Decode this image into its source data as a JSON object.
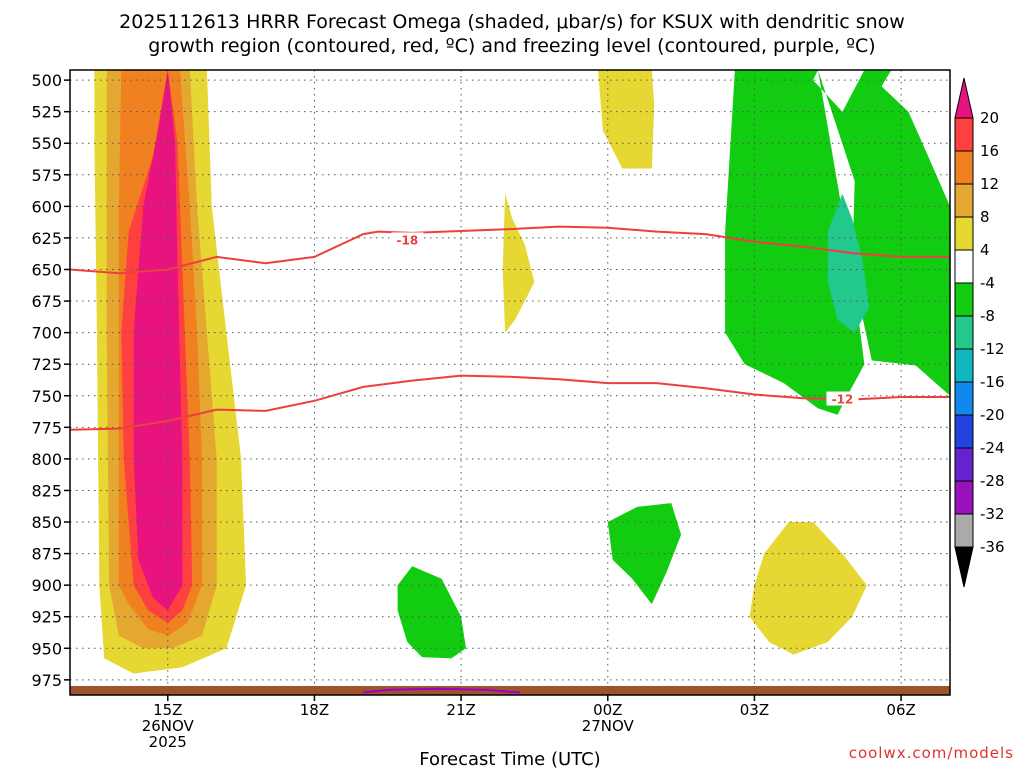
{
  "title": {
    "line1": "2025112613 HRRR Forecast Omega (shaded, μbar/s) for KSUX with dendritic snow",
    "line2": "growth region (contoured, red, ºC) and freezing level (contoured, purple, ºC)"
  },
  "credit": "coolwx.com/models",
  "colors": {
    "dgz_contour": "#ee3f3f",
    "freezing_contour": "#9900cc",
    "ground": "#a0522d",
    "grid": "#555555",
    "credit": "#dd3333"
  },
  "chart_data": {
    "type": "contour_time_height",
    "title": "2025112613 HRRR Forecast Omega (shaded, μbar/s) for KSUX with dendritic snow growth region (contoured, red, ºC) and freezing level (contoured, purple, ºC)",
    "xlabel": "Forecast Time (UTC)",
    "ylabel": "",
    "x_unit": "hours since 2025-11-26 13Z",
    "xlim": [
      13,
      31
    ],
    "ylim": [
      987,
      492
    ],
    "y_ticks": [
      500,
      525,
      550,
      575,
      600,
      625,
      650,
      675,
      700,
      725,
      750,
      775,
      800,
      825,
      850,
      875,
      900,
      925,
      950,
      975
    ],
    "x_ticks": [
      {
        "hour": 15,
        "lines": [
          "15Z",
          "26NOV",
          "2025"
        ]
      },
      {
        "hour": 18,
        "lines": [
          "18Z"
        ]
      },
      {
        "hour": 21,
        "lines": [
          "21Z"
        ]
      },
      {
        "hour": 24,
        "lines": [
          "00Z",
          "27NOV"
        ]
      },
      {
        "hour": 27,
        "lines": [
          "03Z"
        ]
      },
      {
        "hour": 30,
        "lines": [
          "06Z"
        ]
      }
    ],
    "colorbar": {
      "labels": [
        "20",
        "16",
        "12",
        "8",
        "4",
        "-4",
        "-8",
        "-12",
        "-16",
        "-20",
        "-24",
        "-28",
        "-32",
        "-36"
      ],
      "bins": [
        {
          "color": "#e8137f",
          "label": ">20"
        },
        {
          "color": "#ff4040",
          "label": "16–20"
        },
        {
          "color": "#f08020",
          "label": "12–16"
        },
        {
          "color": "#e4a830",
          "label": "8–12"
        },
        {
          "color": "#e7d733",
          "label": "4–8"
        },
        {
          "color": "#ffffff",
          "label": "-4–4"
        },
        {
          "color": "#11cc11",
          "label": "-8–-4"
        },
        {
          "color": "#22c88c",
          "label": "-12–-8"
        },
        {
          "color": "#11b8c0",
          "label": "-16–-12"
        },
        {
          "color": "#1188ee",
          "label": "-20–-16"
        },
        {
          "color": "#2244dd",
          "label": "-24–-20"
        },
        {
          "color": "#6622cc",
          "label": "-28–-24"
        },
        {
          "color": "#9911bb",
          "label": "-32–-28"
        },
        {
          "color": "#aaaaaa",
          "label": "-36–-32"
        },
        {
          "color": "#000000",
          "label": "<-36"
        }
      ]
    },
    "shaded_regions": [
      {
        "name": "omega-plume-4",
        "color": "#e7d733",
        "points": [
          [
            13.5,
            492
          ],
          [
            15.8,
            492
          ],
          [
            15.9,
            600
          ],
          [
            16.2,
            700
          ],
          [
            16.5,
            800
          ],
          [
            16.6,
            900
          ],
          [
            16.2,
            950
          ],
          [
            15.3,
            965
          ],
          [
            14.3,
            970
          ],
          [
            13.7,
            958
          ],
          [
            13.6,
            900
          ],
          [
            13.55,
            700
          ],
          [
            13.5,
            550
          ]
        ]
      },
      {
        "name": "omega-plume-8",
        "color": "#e4a830",
        "points": [
          [
            13.75,
            492
          ],
          [
            15.45,
            492
          ],
          [
            15.6,
            600
          ],
          [
            15.8,
            700
          ],
          [
            16.0,
            800
          ],
          [
            16.0,
            900
          ],
          [
            15.7,
            940
          ],
          [
            15.1,
            950
          ],
          [
            14.5,
            950
          ],
          [
            14.0,
            940
          ],
          [
            13.8,
            900
          ],
          [
            13.75,
            700
          ]
        ]
      },
      {
        "name": "omega-plume-12",
        "color": "#f08020",
        "points": [
          [
            14.05,
            492
          ],
          [
            15.25,
            492
          ],
          [
            15.45,
            600
          ],
          [
            15.6,
            700
          ],
          [
            15.7,
            800
          ],
          [
            15.7,
            900
          ],
          [
            15.4,
            930
          ],
          [
            15.0,
            940
          ],
          [
            14.6,
            935
          ],
          [
            14.2,
            915
          ],
          [
            14.0,
            900
          ],
          [
            14.0,
            700
          ],
          [
            14.0,
            600
          ]
        ]
      },
      {
        "name": "omega-plume-16",
        "color": "#ff4040",
        "points": [
          [
            15.0,
            492
          ],
          [
            15.2,
            550
          ],
          [
            15.3,
            650
          ],
          [
            15.45,
            800
          ],
          [
            15.5,
            900
          ],
          [
            15.3,
            920
          ],
          [
            15.0,
            930
          ],
          [
            14.6,
            920
          ],
          [
            14.3,
            900
          ],
          [
            14.1,
            800
          ],
          [
            14.05,
            700
          ],
          [
            14.2,
            620
          ],
          [
            14.7,
            560
          ]
        ]
      },
      {
        "name": "omega-plume-20",
        "color": "#e8137f",
        "points": [
          [
            15.0,
            492
          ],
          [
            15.15,
            550
          ],
          [
            15.2,
            650
          ],
          [
            15.3,
            800
          ],
          [
            15.3,
            900
          ],
          [
            15.0,
            920
          ],
          [
            14.7,
            910
          ],
          [
            14.4,
            880
          ],
          [
            14.3,
            800
          ],
          [
            14.3,
            700
          ],
          [
            14.5,
            600
          ],
          [
            14.8,
            540
          ]
        ]
      },
      {
        "name": "omega-upper-4-a",
        "color": "#e7d733",
        "points": [
          [
            23.8,
            492
          ],
          [
            24.9,
            492
          ],
          [
            24.95,
            520
          ],
          [
            24.9,
            570
          ],
          [
            24.3,
            570
          ],
          [
            23.9,
            540
          ]
        ]
      },
      {
        "name": "omega-mid-4",
        "color": "#e7d733",
        "points": [
          [
            21.9,
            590
          ],
          [
            22.05,
            610
          ],
          [
            22.3,
            630
          ],
          [
            22.5,
            660
          ],
          [
            22.1,
            690
          ],
          [
            21.9,
            700
          ],
          [
            21.85,
            650
          ]
        ]
      },
      {
        "name": "omega-low-4",
        "color": "#e7d733",
        "points": [
          [
            27.2,
            875
          ],
          [
            27.7,
            850
          ],
          [
            28.2,
            850
          ],
          [
            28.8,
            875
          ],
          [
            29.3,
            900
          ],
          [
            29.0,
            925
          ],
          [
            28.5,
            945
          ],
          [
            27.8,
            955
          ],
          [
            27.3,
            945
          ],
          [
            26.9,
            925
          ],
          [
            27.0,
            900
          ]
        ]
      },
      {
        "name": "omega-upper-neg4",
        "color": "#11cc11",
        "points": [
          [
            26.6,
            492
          ],
          [
            28.3,
            492
          ],
          [
            29.05,
            580
          ],
          [
            29.0,
            650
          ],
          [
            29.4,
            722
          ],
          [
            30.3,
            726
          ],
          [
            31.0,
            750
          ],
          [
            31.0,
            600
          ],
          [
            30.55,
            560
          ],
          [
            30.15,
            525
          ],
          [
            29.6,
            505
          ],
          [
            29.8,
            492
          ],
          [
            29.25,
            492
          ],
          [
            28.8,
            525
          ],
          [
            28.2,
            500
          ],
          [
            28.3,
            492
          ],
          [
            26.6,
            492
          ],
          [
            26.6,
            492
          ],
          [
            26.4,
            620
          ],
          [
            26.4,
            700
          ],
          [
            26.8,
            725
          ],
          [
            27.6,
            740
          ],
          [
            28.3,
            760
          ],
          [
            28.7,
            765
          ],
          [
            28.9,
            750
          ],
          [
            29.25,
            725
          ],
          [
            29.0,
            650
          ],
          [
            28.3,
            492
          ]
        ]
      },
      {
        "name": "omega-upper-neg8",
        "color": "#22c88c",
        "points": [
          [
            28.8,
            590
          ],
          [
            29.0,
            610
          ],
          [
            29.2,
            640
          ],
          [
            29.35,
            680
          ],
          [
            29.05,
            700
          ],
          [
            28.7,
            690
          ],
          [
            28.5,
            660
          ],
          [
            28.5,
            620
          ]
        ]
      },
      {
        "name": "omega-lowmid-neg4-a",
        "color": "#11cc11",
        "points": [
          [
            24.0,
            850
          ],
          [
            24.6,
            838
          ],
          [
            25.3,
            835
          ],
          [
            25.5,
            860
          ],
          [
            25.2,
            890
          ],
          [
            24.9,
            915
          ],
          [
            24.5,
            895
          ],
          [
            24.1,
            880
          ]
        ]
      },
      {
        "name": "omega-low-neg4-b",
        "color": "#11cc11",
        "points": [
          [
            19.7,
            900
          ],
          [
            20.0,
            885
          ],
          [
            20.6,
            895
          ],
          [
            21.0,
            925
          ],
          [
            21.1,
            950
          ],
          [
            20.8,
            958
          ],
          [
            20.2,
            957
          ],
          [
            19.9,
            945
          ],
          [
            19.7,
            920
          ]
        ]
      }
    ],
    "contours": [
      {
        "name": "dgz-minus18",
        "level": -18,
        "label": "-18",
        "label_hour": 19.9,
        "label_pressure": 627,
        "points": [
          [
            13.0,
            650
          ],
          [
            14.0,
            653
          ],
          [
            15.0,
            650
          ],
          [
            16.0,
            640
          ],
          [
            17.0,
            645
          ],
          [
            18.0,
            640
          ],
          [
            19.0,
            622
          ],
          [
            19.3,
            620
          ],
          [
            20.0,
            621
          ],
          [
            22.0,
            618
          ],
          [
            23.0,
            616
          ],
          [
            24.0,
            617
          ],
          [
            25.0,
            620
          ],
          [
            26.0,
            622
          ],
          [
            27.0,
            628
          ],
          [
            28.0,
            632
          ],
          [
            29.0,
            637
          ],
          [
            30.0,
            640
          ],
          [
            31.0,
            640
          ]
        ]
      },
      {
        "name": "dgz-minus12",
        "level": -12,
        "label": "-12",
        "label_hour": 28.8,
        "label_pressure": 753,
        "points": [
          [
            13.0,
            777
          ],
          [
            14.0,
            776
          ],
          [
            15.0,
            770
          ],
          [
            16.0,
            761
          ],
          [
            17.0,
            762
          ],
          [
            18.0,
            754
          ],
          [
            19.0,
            743
          ],
          [
            20.0,
            738
          ],
          [
            21.0,
            734
          ],
          [
            22.0,
            735
          ],
          [
            23.0,
            737
          ],
          [
            24.0,
            740
          ],
          [
            25.0,
            740
          ],
          [
            26.0,
            744
          ],
          [
            27.0,
            749
          ],
          [
            28.0,
            752
          ],
          [
            29.0,
            753
          ],
          [
            30.0,
            751
          ],
          [
            31.0,
            751
          ]
        ]
      },
      {
        "name": "freezing-level",
        "level": 0,
        "points": [
          [
            19.0,
            985
          ],
          [
            19.5,
            983
          ],
          [
            20.5,
            982
          ],
          [
            21.5,
            983
          ],
          [
            22.2,
            985
          ]
        ]
      }
    ]
  }
}
